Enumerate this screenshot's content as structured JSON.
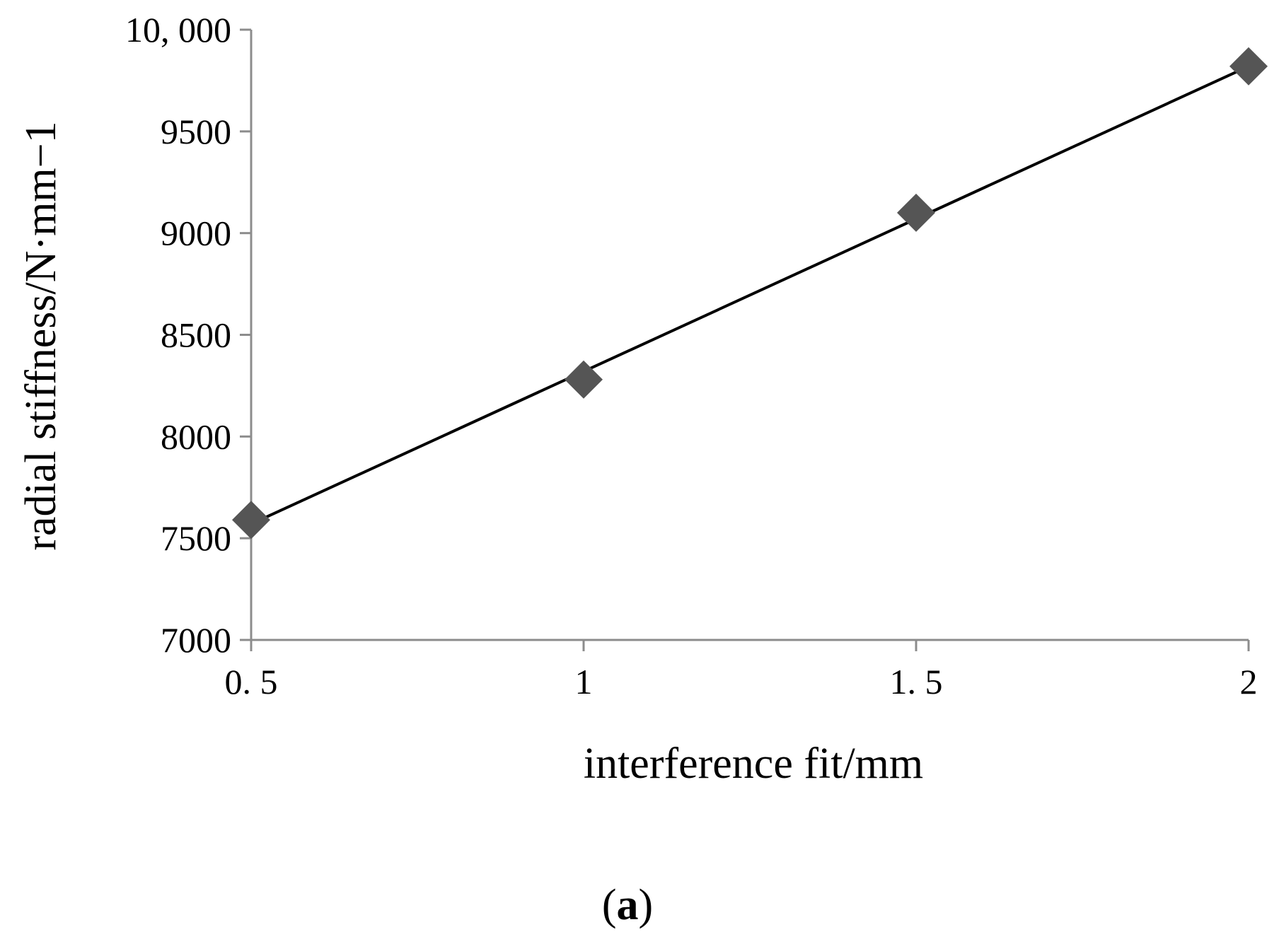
{
  "chart_data": {
    "type": "scatter",
    "xlabel": "interference fit/mm",
    "ylabel": "radial stiffness/N·mm−1",
    "xlim": [
      0.5,
      2
    ],
    "ylim": [
      7000,
      10000
    ],
    "x_ticks": [
      0.5,
      1,
      1.5,
      2
    ],
    "x_tick_labels": [
      "0. 5",
      "1",
      "1. 5",
      "2"
    ],
    "y_ticks": [
      7000,
      7500,
      8000,
      8500,
      9000,
      9500,
      10000
    ],
    "y_tick_labels": [
      "7000",
      "7500",
      "8000",
      "8500",
      "9000",
      "9500",
      "10, 000"
    ],
    "grid": false,
    "series": [
      {
        "marker": "diamond",
        "color": "#555555",
        "x": [
          0.5,
          1,
          1.5,
          2
        ],
        "y": [
          7590,
          8280,
          9100,
          9820
        ]
      }
    ],
    "trendline": {
      "type": "linear",
      "color": "#000000",
      "x": [
        0.5,
        2
      ],
      "y": [
        7570,
        9820
      ]
    },
    "caption": {
      "open": "(",
      "letter": "a",
      "close": ")"
    }
  }
}
